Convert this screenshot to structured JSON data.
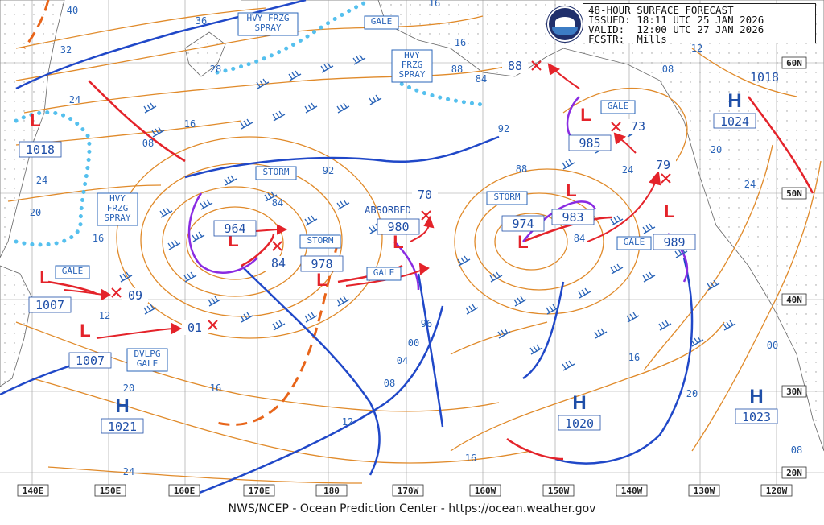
{
  "header": {
    "line1": "48-HOUR SURFACE FORECAST",
    "line2": "ISSUED: 18:11 UTC 25 JAN 2026",
    "line3": "VALID:  12:00 UTC 27 JAN 2026",
    "line4": "FCSTR:  Mills"
  },
  "logo": "noaa-logo",
  "footer": "NWS/NCEP - Ocean Prediction Center - https://ocean.weather.gov",
  "colors": {
    "isobar": "#e08a2a",
    "warning": "#2a64b8",
    "low": "#e4232a",
    "front_cold": "#2048c8",
    "front_warm": "#e4232a",
    "occluded": "#8a2be2",
    "ice": "#55c0ee",
    "grid": "#888888",
    "trough": "#e8651a"
  },
  "lon_labels": [
    "140E",
    "150E",
    "160E",
    "170E",
    "180",
    "170W",
    "160W",
    "150W",
    "140W",
    "130W",
    "120W"
  ],
  "lat_labels": [
    "60N",
    "50N",
    "40N",
    "30N",
    "20N"
  ],
  "highs": [
    {
      "name": "high-1021",
      "letter": "H",
      "pressure": "1021"
    },
    {
      "name": "high-1020",
      "letter": "H",
      "pressure": "1020"
    },
    {
      "name": "high-1023",
      "letter": "H",
      "pressure": "1023"
    },
    {
      "name": "high-1024",
      "letter": "H",
      "pressure": "1024"
    },
    {
      "name": "high-1018",
      "letter": "H",
      "pressure": "1018"
    }
  ],
  "lows": [
    {
      "name": "low-1018",
      "pressure": "1018"
    },
    {
      "name": "low-1007-a",
      "pressure": "1007"
    },
    {
      "name": "low-1007-b",
      "pressure": "1007"
    },
    {
      "name": "low-964",
      "pressure": "964"
    },
    {
      "name": "low-978",
      "pressure": "978"
    },
    {
      "name": "low-980",
      "pressure": "980"
    },
    {
      "name": "low-974",
      "pressure": "974"
    },
    {
      "name": "low-983",
      "pressure": "983"
    },
    {
      "name": "low-985",
      "pressure": "985"
    },
    {
      "name": "low-989",
      "pressure": "989"
    }
  ],
  "warnings": [
    {
      "name": "warn-storm-1",
      "text": [
        "STORM"
      ]
    },
    {
      "name": "warn-storm-2",
      "text": [
        "STORM"
      ]
    },
    {
      "name": "warn-storm-3",
      "text": [
        "STORM"
      ]
    },
    {
      "name": "warn-gale-1",
      "text": [
        "GALE"
      ]
    },
    {
      "name": "warn-gale-2",
      "text": [
        "GALE"
      ]
    },
    {
      "name": "warn-gale-3",
      "text": [
        "GALE"
      ]
    },
    {
      "name": "warn-gale-4",
      "text": [
        "GALE"
      ]
    },
    {
      "name": "warn-gale-5",
      "text": [
        "GALE"
      ]
    },
    {
      "name": "warn-dvlpg-gale",
      "text": [
        "DVLPG",
        "GALE"
      ]
    },
    {
      "name": "warn-hvy-frzg-1",
      "text": [
        "HVY FRZG",
        "SPRAY"
      ]
    },
    {
      "name": "warn-hvy-frzg-2",
      "text": [
        "HVY",
        "FRZG",
        "SPRAY"
      ]
    },
    {
      "name": "warn-hvy-frzg-3",
      "text": [
        "HVY",
        "FRZG",
        "SPRAY"
      ]
    }
  ],
  "labels": [
    {
      "name": "absorbed-label",
      "text": "ABSORBED"
    },
    {
      "name": "pos-88",
      "text": "88"
    },
    {
      "name": "pos-73",
      "text": "73"
    },
    {
      "name": "pos-79",
      "text": "79"
    },
    {
      "name": "pos-70",
      "text": "70"
    },
    {
      "name": "pos-84-a",
      "text": "84"
    },
    {
      "name": "pos-09",
      "text": "09"
    },
    {
      "name": "pos-01",
      "text": "01"
    }
  ],
  "isobar_labels": [
    "40",
    "36",
    "32",
    "28",
    "24",
    "16",
    "08",
    "24",
    "20",
    "16",
    "12",
    "84",
    "92",
    "84",
    "88",
    "96",
    "00",
    "04",
    "08",
    "12",
    "16",
    "20",
    "24",
    "16",
    "92",
    "88",
    "84",
    "20",
    "16",
    "20",
    "24",
    "12",
    "08",
    "00",
    "08",
    "16",
    "24",
    "16"
  ]
}
